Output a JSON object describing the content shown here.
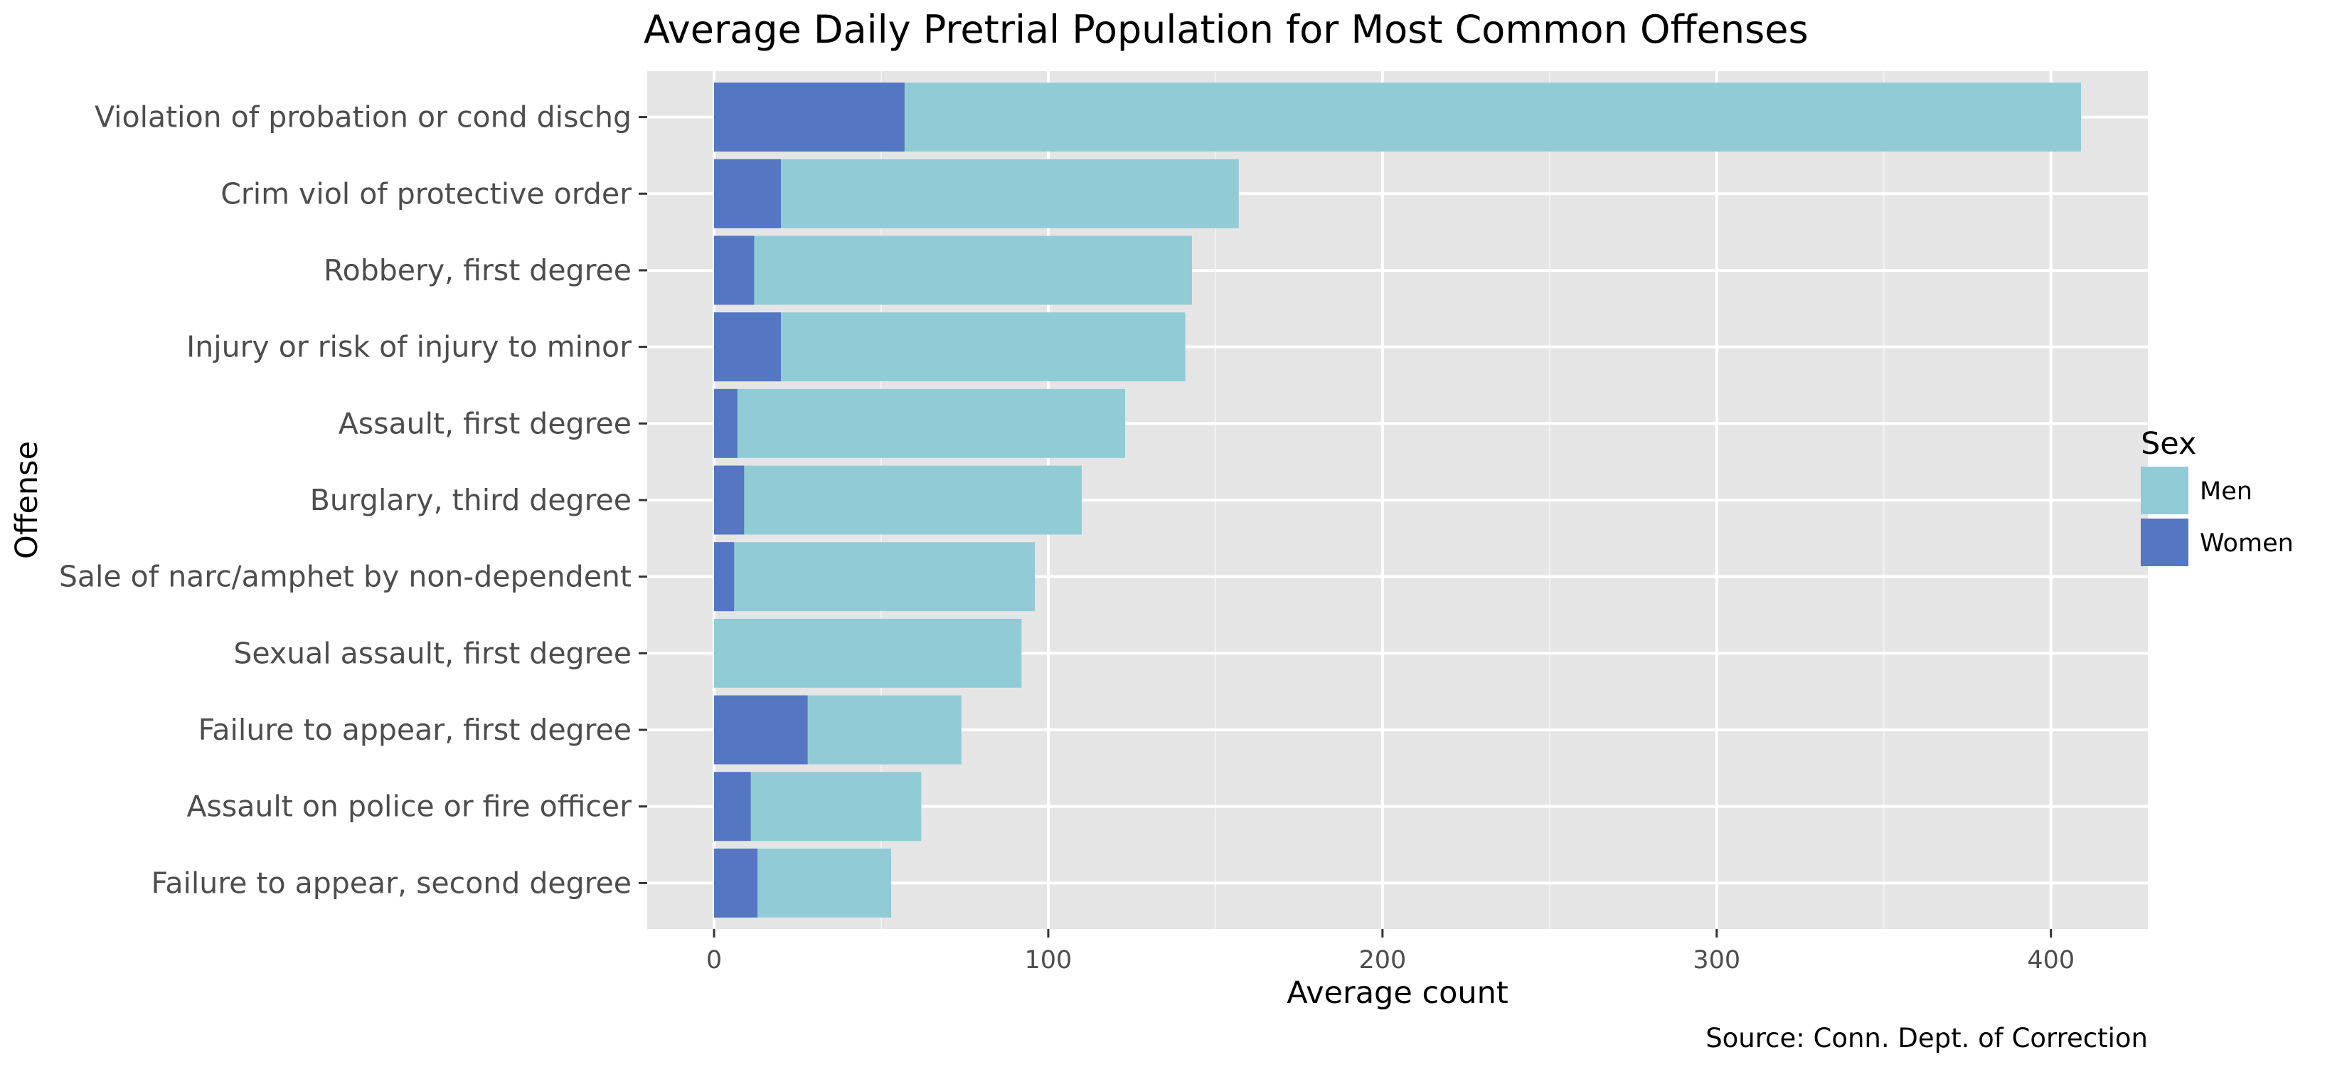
{
  "chart_data": {
    "type": "bar",
    "orientation": "horizontal",
    "stacking": "overlay",
    "title": "Average Daily Pretrial Population for Most Common Offenses",
    "xlabel": "Average count",
    "ylabel": "Offense",
    "caption": "Source: Conn. Dept. of Correction",
    "xlim": [
      -20,
      429
    ],
    "xticks": [
      0,
      100,
      200,
      300,
      400
    ],
    "xtick_labels": [
      "0",
      "100",
      "200",
      "300",
      "400"
    ],
    "grid": true,
    "legend": {
      "title": "Sex",
      "position": "right",
      "entries": [
        {
          "label": "Men",
          "color": "#91ccd6"
        },
        {
          "label": "Women",
          "color": "#5576c2"
        }
      ]
    },
    "categories": [
      "Violation of probation or cond dischg",
      "Crim viol of protective order",
      "Robbery, first degree",
      "Injury or risk of injury to minor",
      "Assault, first degree",
      "Burglary, third degree",
      "Sale of narc/amphet by non-dependent",
      "Sexual assault, first degree",
      "Failure to appear, first degree",
      "Assault on police or fire officer",
      "Failure to appear, second degree"
    ],
    "series": [
      {
        "name": "Men",
        "color": "#91ccd6",
        "values": [
          409,
          157,
          143,
          141,
          123,
          110,
          96,
          92,
          74,
          62,
          53
        ]
      },
      {
        "name": "Women",
        "color": "#5576c2",
        "values": [
          57,
          20,
          12,
          20,
          7,
          9,
          6,
          0,
          28,
          11,
          13
        ]
      }
    ]
  }
}
